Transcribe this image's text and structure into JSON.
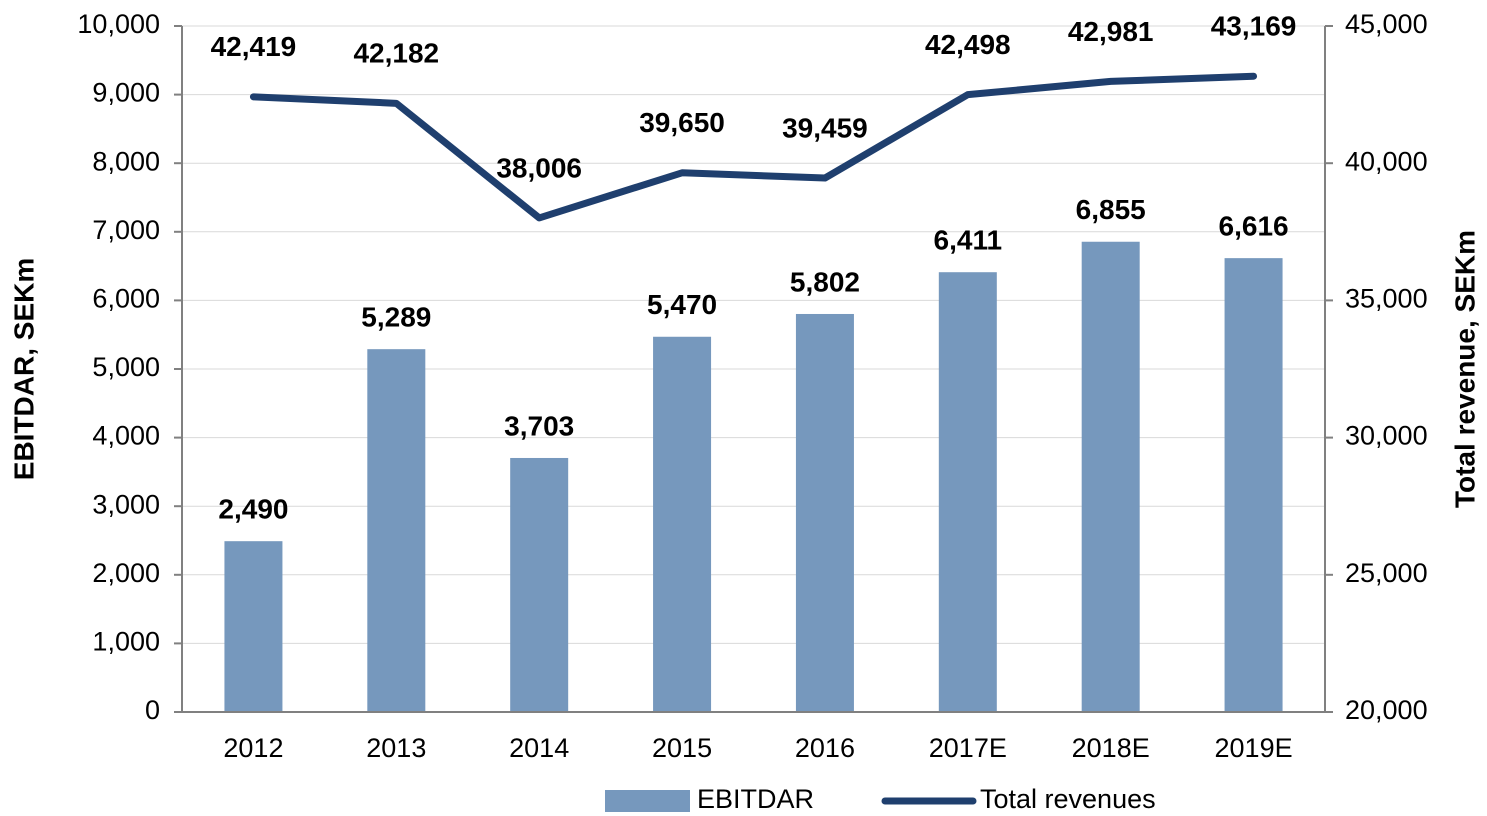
{
  "chart_data": {
    "type": "combo",
    "categories": [
      "2012",
      "2013",
      "2014",
      "2015",
      "2016",
      "2017E",
      "2018E",
      "2019E"
    ],
    "series": [
      {
        "name": "EBITDAR",
        "type": "bar",
        "color": "#7698bd",
        "axis": "y",
        "values": [
          2490,
          5289,
          3703,
          5470,
          5802,
          6411,
          6855,
          6616
        ],
        "value_labels": [
          "2,490",
          "5,289",
          "3,703",
          "5,470",
          "5,802",
          "6,411",
          "6,855",
          "6,616"
        ]
      },
      {
        "name": "Total revenues",
        "type": "line",
        "color": "#1f3f6e",
        "axis": "y2",
        "values": [
          42419,
          42182,
          38006,
          39650,
          39459,
          42498,
          42981,
          43169
        ],
        "value_labels": [
          "42,419",
          "42,182",
          "38,006",
          "39,650",
          "39,459",
          "42,498",
          "42,981",
          "43,169"
        ]
      }
    ],
    "ylabel": "EBITDAR, SEKm",
    "y2label": "Total revenue, SEKm",
    "ylim": [
      0,
      10000
    ],
    "yticks": [
      0,
      {
        "value": 1000,
        "label": "1,000"
      },
      {
        "value": 2000,
        "label": "2,000"
      },
      {
        "value": 3000,
        "label": "3,000"
      },
      {
        "value": 4000,
        "label": "4,000"
      },
      {
        "value": 5000,
        "label": "5,000"
      },
      {
        "value": 6000,
        "label": "6,000"
      },
      {
        "value": 7000,
        "label": "7,000"
      },
      {
        "value": 8000,
        "label": "8,000"
      },
      {
        "value": 9000,
        "label": "9,000"
      },
      {
        "value": 10000,
        "label": "10,000"
      }
    ],
    "y2lim": [
      20000,
      45000
    ],
    "y2ticks": [
      {
        "value": 20000,
        "label": "20,000"
      },
      {
        "value": 25000,
        "label": "25,000"
      },
      {
        "value": 30000,
        "label": "30,000"
      },
      {
        "value": 35000,
        "label": "35,000"
      },
      {
        "value": 40000,
        "label": "40,000"
      },
      {
        "value": 45000,
        "label": "45,000"
      }
    ],
    "grid": true,
    "legend": "bottom"
  }
}
